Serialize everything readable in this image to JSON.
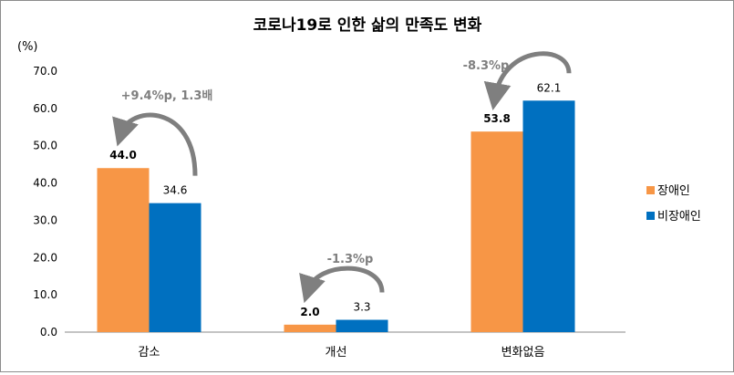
{
  "chart_data": {
    "type": "bar",
    "title": "코로나19로 인한 삶의 만족도 변화",
    "ylabel": "(%)",
    "xlabel": "",
    "ylim": [
      0,
      70
    ],
    "yticks": [
      "0.0",
      "10.0",
      "20.0",
      "30.0",
      "40.0",
      "50.0",
      "60.0",
      "70.0"
    ],
    "grid": false,
    "legend_position": "right",
    "categories": [
      "감소",
      "개선",
      "변화없음"
    ],
    "series": [
      {
        "name": "장애인",
        "color": "#F79646",
        "values": [
          44.0,
          2.0,
          53.8
        ],
        "labels": [
          "44.0",
          "2.0",
          "53.8"
        ]
      },
      {
        "name": "비장애인",
        "color": "#0070C0",
        "values": [
          34.6,
          3.3,
          62.1
        ],
        "labels": [
          "34.6",
          "3.3",
          "62.1"
        ]
      }
    ],
    "annotations": [
      "+9.4%p,  1.3배",
      "-1.3%p",
      "-8.3%p"
    ],
    "annotation_color": "#7F7F7F",
    "arrow_icon": "curved-arrow-icon"
  }
}
